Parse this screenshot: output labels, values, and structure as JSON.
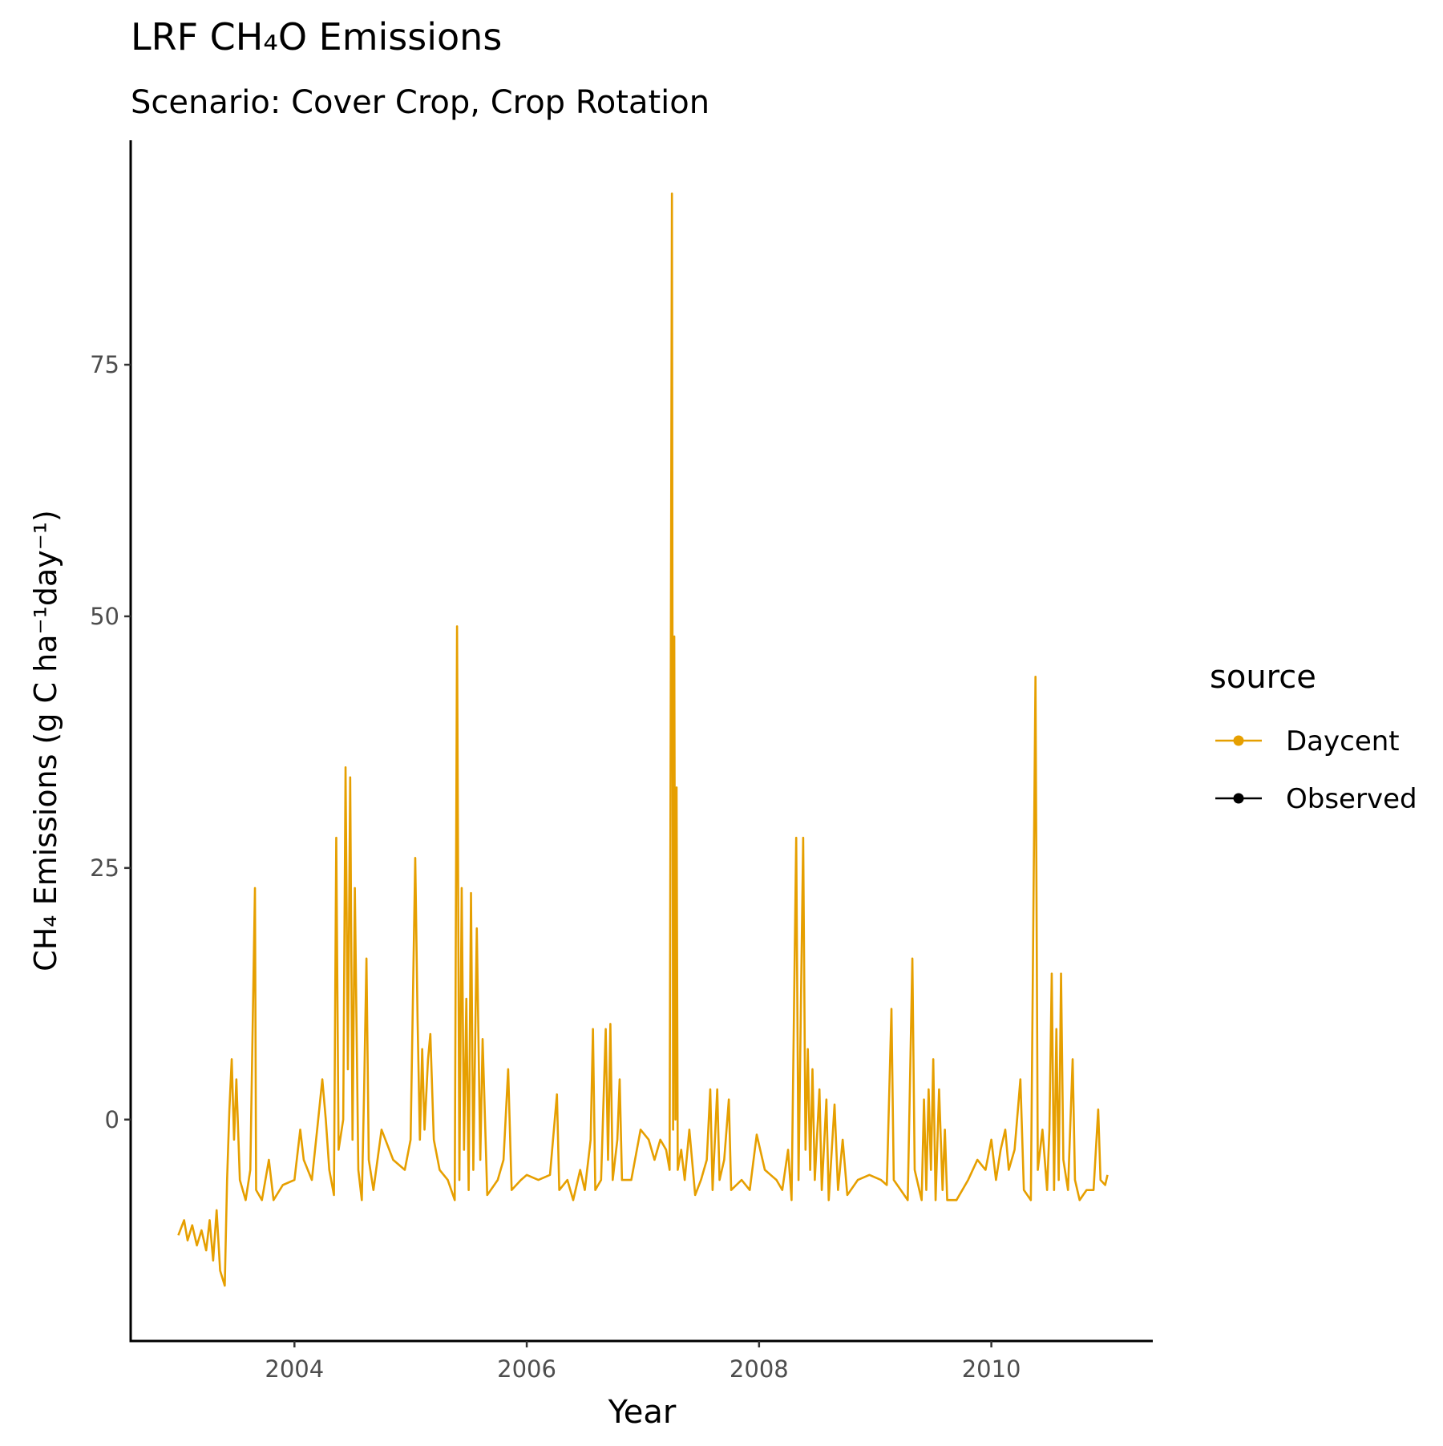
{
  "chart_data": {
    "type": "line",
    "title": "LRF CH₄O Emissions",
    "subtitle": "Scenario: Cover Crop, Crop Rotation",
    "x_label": "Year",
    "y_label": "CH₄ Emissions (g C ha⁻¹day⁻¹)",
    "legend_title": "source",
    "x": [
      2003.0,
      2003.05,
      2003.08,
      2003.12,
      2003.16,
      2003.2,
      2003.24,
      2003.27,
      2003.3,
      2003.33,
      2003.36,
      2003.4,
      2003.42,
      2003.44,
      2003.46,
      2003.48,
      2003.5,
      2003.53,
      2003.58,
      2003.62,
      2003.66,
      2003.67,
      2003.72,
      2003.78,
      2003.82,
      2003.9,
      2004.0,
      2004.05,
      2004.08,
      2004.15,
      2004.2,
      2004.24,
      2004.27,
      2004.3,
      2004.34,
      2004.36,
      2004.38,
      2004.42,
      2004.44,
      2004.46,
      2004.48,
      2004.5,
      2004.52,
      2004.55,
      2004.58,
      2004.6,
      2004.62,
      2004.64,
      2004.68,
      2004.75,
      2004.85,
      2004.95,
      2005.0,
      2005.04,
      2005.06,
      2005.08,
      2005.1,
      2005.12,
      2005.15,
      2005.17,
      2005.2,
      2005.25,
      2005.32,
      2005.38,
      2005.4,
      2005.42,
      2005.44,
      2005.46,
      2005.48,
      2005.5,
      2005.52,
      2005.54,
      2005.57,
      2005.6,
      2005.62,
      2005.66,
      2005.75,
      2005.8,
      2005.84,
      2005.87,
      2005.95,
      2006.0,
      2006.1,
      2006.2,
      2006.26,
      2006.28,
      2006.35,
      2006.4,
      2006.46,
      2006.5,
      2006.55,
      2006.57,
      2006.59,
      2006.64,
      2006.68,
      2006.7,
      2006.72,
      2006.74,
      2006.78,
      2006.8,
      2006.82,
      2006.9,
      2006.98,
      2007.05,
      2007.1,
      2007.15,
      2007.2,
      2007.23,
      2007.25,
      2007.26,
      2007.27,
      2007.28,
      2007.29,
      2007.3,
      2007.33,
      2007.36,
      2007.4,
      2007.45,
      2007.5,
      2007.55,
      2007.58,
      2007.6,
      2007.64,
      2007.66,
      2007.7,
      2007.74,
      2007.76,
      2007.85,
      2007.92,
      2007.98,
      2008.05,
      2008.1,
      2008.15,
      2008.2,
      2008.25,
      2008.28,
      2008.32,
      2008.34,
      2008.38,
      2008.4,
      2008.42,
      2008.44,
      2008.46,
      2008.48,
      2008.52,
      2008.54,
      2008.58,
      2008.6,
      2008.65,
      2008.68,
      2008.72,
      2008.76,
      2008.85,
      2008.95,
      2009.05,
      2009.1,
      2009.14,
      2009.16,
      2009.22,
      2009.28,
      2009.32,
      2009.34,
      2009.4,
      2009.42,
      2009.44,
      2009.46,
      2009.48,
      2009.5,
      2009.52,
      2009.55,
      2009.58,
      2009.6,
      2009.62,
      2009.7,
      2009.8,
      2009.88,
      2009.95,
      2010.0,
      2010.04,
      2010.08,
      2010.12,
      2010.15,
      2010.2,
      2010.25,
      2010.28,
      2010.34,
      2010.38,
      2010.4,
      2010.44,
      2010.48,
      2010.5,
      2010.52,
      2010.54,
      2010.56,
      2010.58,
      2010.6,
      2010.62,
      2010.66,
      2010.7,
      2010.72,
      2010.76,
      2010.82,
      2010.88,
      2010.92,
      2010.94,
      2010.98,
      2011.0
    ],
    "series": [
      {
        "name": "Daycent",
        "color": "#E69F00",
        "values": [
          -11.5,
          -10,
          -12,
          -10.5,
          -12.5,
          -11,
          -13,
          -10,
          -14,
          -9,
          -15,
          -16.5,
          -6,
          1,
          6,
          -2,
          4,
          -6,
          -8,
          -5,
          23,
          -7,
          -8,
          -4,
          -8,
          -6.5,
          -6,
          -1,
          -4,
          -6,
          -0.5,
          4,
          0,
          -5,
          -7.5,
          28,
          -3,
          0,
          35,
          5,
          34,
          -2,
          23,
          -5,
          -8,
          3,
          16,
          -4,
          -7,
          -1,
          -4,
          -5,
          -2,
          26,
          10,
          -2,
          7,
          -1,
          6,
          8.5,
          -2,
          -5,
          -6,
          -8,
          49,
          -6,
          23,
          -3,
          12,
          -7,
          22.5,
          -5,
          19,
          -4,
          8,
          -7.5,
          -6,
          -4,
          5,
          -7,
          -6,
          -5.5,
          -6,
          -5.5,
          2.5,
          -7,
          -6,
          -8,
          -5,
          -7,
          -2,
          9,
          -7,
          -6,
          9,
          -4,
          9.5,
          -6,
          -2,
          4,
          -6,
          -6,
          -1,
          -2,
          -4,
          -2,
          -3,
          -5,
          92,
          -1,
          48,
          0,
          33,
          -5,
          -3,
          -6,
          -1,
          -7.5,
          -6,
          -4,
          3,
          -7,
          3,
          -6,
          -4,
          2,
          -7,
          -6,
          -7,
          -1.5,
          -5,
          -5.5,
          -6,
          -7,
          -3,
          -8,
          28,
          -6,
          28,
          -3,
          7,
          -5,
          5,
          -6,
          3,
          -7,
          2,
          -8,
          1.5,
          -7,
          -2,
          -7.5,
          -6,
          -5.5,
          -6,
          -6.5,
          11,
          -6,
          -7,
          -8,
          16,
          -5,
          -8,
          2,
          -7,
          3,
          -5,
          6,
          -8,
          3,
          -7,
          -1,
          -8,
          -8,
          -6,
          -4,
          -5,
          -2,
          -6,
          -3,
          -1,
          -5,
          -3,
          4,
          -7,
          -8,
          44,
          -5,
          -1,
          -7,
          -1,
          14.5,
          -7,
          9,
          -6,
          14.5,
          -4,
          -7,
          6,
          -6,
          -8,
          -7,
          -7,
          1,
          -6,
          -6.5,
          -5.5
        ]
      },
      {
        "name": "Observed",
        "color": "#000000",
        "x": [],
        "values": []
      }
    ],
    "xlim": [
      2002.59,
      2011.39
    ],
    "xticks": [
      2004,
      2006,
      2008,
      2010
    ],
    "ylim": [
      -22,
      97.3
    ],
    "yticks": [
      0,
      25,
      50,
      75
    ],
    "grid": false
  }
}
